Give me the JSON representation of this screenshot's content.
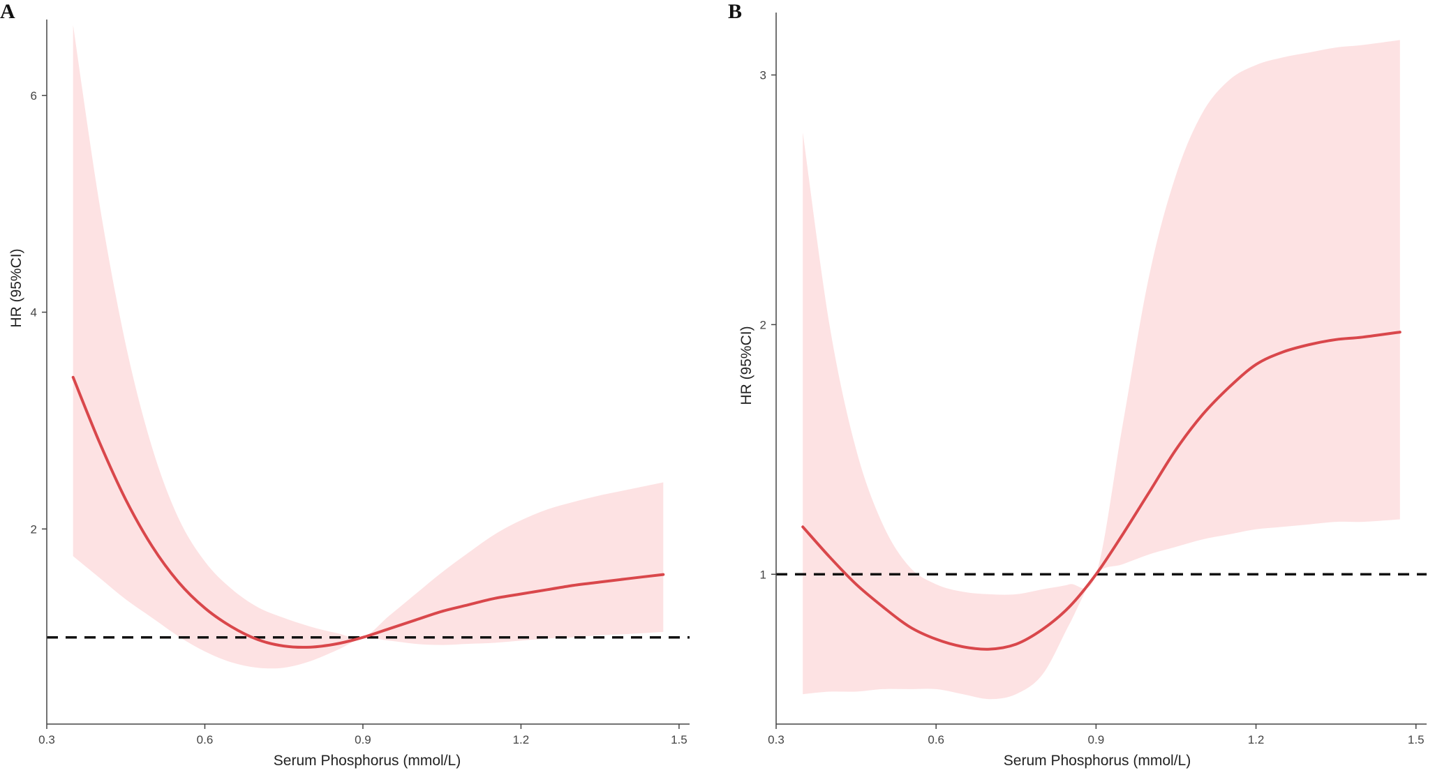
{
  "figure": {
    "panels": [
      {
        "letter": "A"
      },
      {
        "letter": "B"
      }
    ]
  },
  "colors": {
    "line": "#d9474b",
    "band": "#fde2e3",
    "reference": "#111111",
    "axis": "#444444"
  },
  "chart_data": [
    {
      "type": "line",
      "panel": "A",
      "xlabel": "Serum Phosphorus (mmol/L)",
      "ylabel": "HR (95%CI)",
      "xlim": [
        0.3,
        1.52
      ],
      "ylim": [
        0.2,
        6.7
      ],
      "xticks": [
        "0.3",
        "0.6",
        "0.9",
        "1.2",
        "1.5"
      ],
      "yticks": [
        "2",
        "4",
        "6"
      ],
      "reference_line": {
        "y": 1,
        "style": "dashed"
      },
      "grid": false,
      "series": [
        {
          "x": [
            0.35,
            0.4,
            0.45,
            0.5,
            0.55,
            0.6,
            0.65,
            0.7,
            0.75,
            0.8,
            0.85,
            0.9,
            0.95,
            1.0,
            1.05,
            1.1,
            1.15,
            1.2,
            1.25,
            1.3,
            1.35,
            1.4,
            1.47
          ],
          "y": [
            3.4,
            2.8,
            2.27,
            1.84,
            1.51,
            1.27,
            1.1,
            0.98,
            0.92,
            0.91,
            0.94,
            1.0,
            1.08,
            1.16,
            1.24,
            1.3,
            1.36,
            1.4,
            1.44,
            1.48,
            1.51,
            1.54,
            1.58
          ],
          "lower": [
            1.75,
            1.55,
            1.35,
            1.18,
            1.01,
            0.87,
            0.77,
            0.72,
            0.72,
            0.78,
            0.88,
            0.99,
            0.97,
            0.94,
            0.93,
            0.94,
            0.95,
            0.97,
            0.99,
            1.0,
            1.02,
            1.03,
            1.05
          ],
          "upper": [
            6.65,
            5.0,
            3.7,
            2.75,
            2.1,
            1.7,
            1.45,
            1.28,
            1.18,
            1.1,
            1.04,
            1.0,
            1.2,
            1.4,
            1.6,
            1.78,
            1.95,
            2.08,
            2.18,
            2.25,
            2.31,
            2.36,
            2.43
          ]
        }
      ]
    },
    {
      "type": "line",
      "panel": "B",
      "xlabel": "Serum Phosphorus (mmol/L)",
      "ylabel": "HR (95%CI)",
      "xlim": [
        0.3,
        1.52
      ],
      "ylim": [
        0.4,
        3.25
      ],
      "xticks": [
        "0.3",
        "0.6",
        "0.9",
        "1.2",
        "1.5"
      ],
      "yticks": [
        "1",
        "2",
        "3"
      ],
      "reference_line": {
        "y": 1,
        "style": "dashed"
      },
      "grid": false,
      "series": [
        {
          "x": [
            0.35,
            0.4,
            0.45,
            0.5,
            0.55,
            0.6,
            0.65,
            0.7,
            0.75,
            0.8,
            0.85,
            0.9,
            0.95,
            1.0,
            1.05,
            1.1,
            1.15,
            1.2,
            1.25,
            1.3,
            1.35,
            1.4,
            1.47
          ],
          "y": [
            1.19,
            1.07,
            0.96,
            0.87,
            0.79,
            0.74,
            0.71,
            0.7,
            0.72,
            0.78,
            0.87,
            1.0,
            1.16,
            1.33,
            1.5,
            1.64,
            1.75,
            1.84,
            1.89,
            1.92,
            1.94,
            1.95,
            1.97
          ],
          "lower": [
            0.52,
            0.53,
            0.53,
            0.54,
            0.54,
            0.54,
            0.52,
            0.5,
            0.52,
            0.6,
            0.8,
            1.0,
            1.04,
            1.08,
            1.11,
            1.14,
            1.16,
            1.18,
            1.19,
            1.2,
            1.21,
            1.21,
            1.22
          ],
          "upper": [
            2.77,
            2.0,
            1.5,
            1.2,
            1.03,
            0.96,
            0.93,
            0.92,
            0.92,
            0.94,
            0.96,
            1.0,
            1.6,
            2.2,
            2.6,
            2.85,
            2.98,
            3.04,
            3.07,
            3.09,
            3.11,
            3.12,
            3.14
          ]
        }
      ]
    }
  ]
}
